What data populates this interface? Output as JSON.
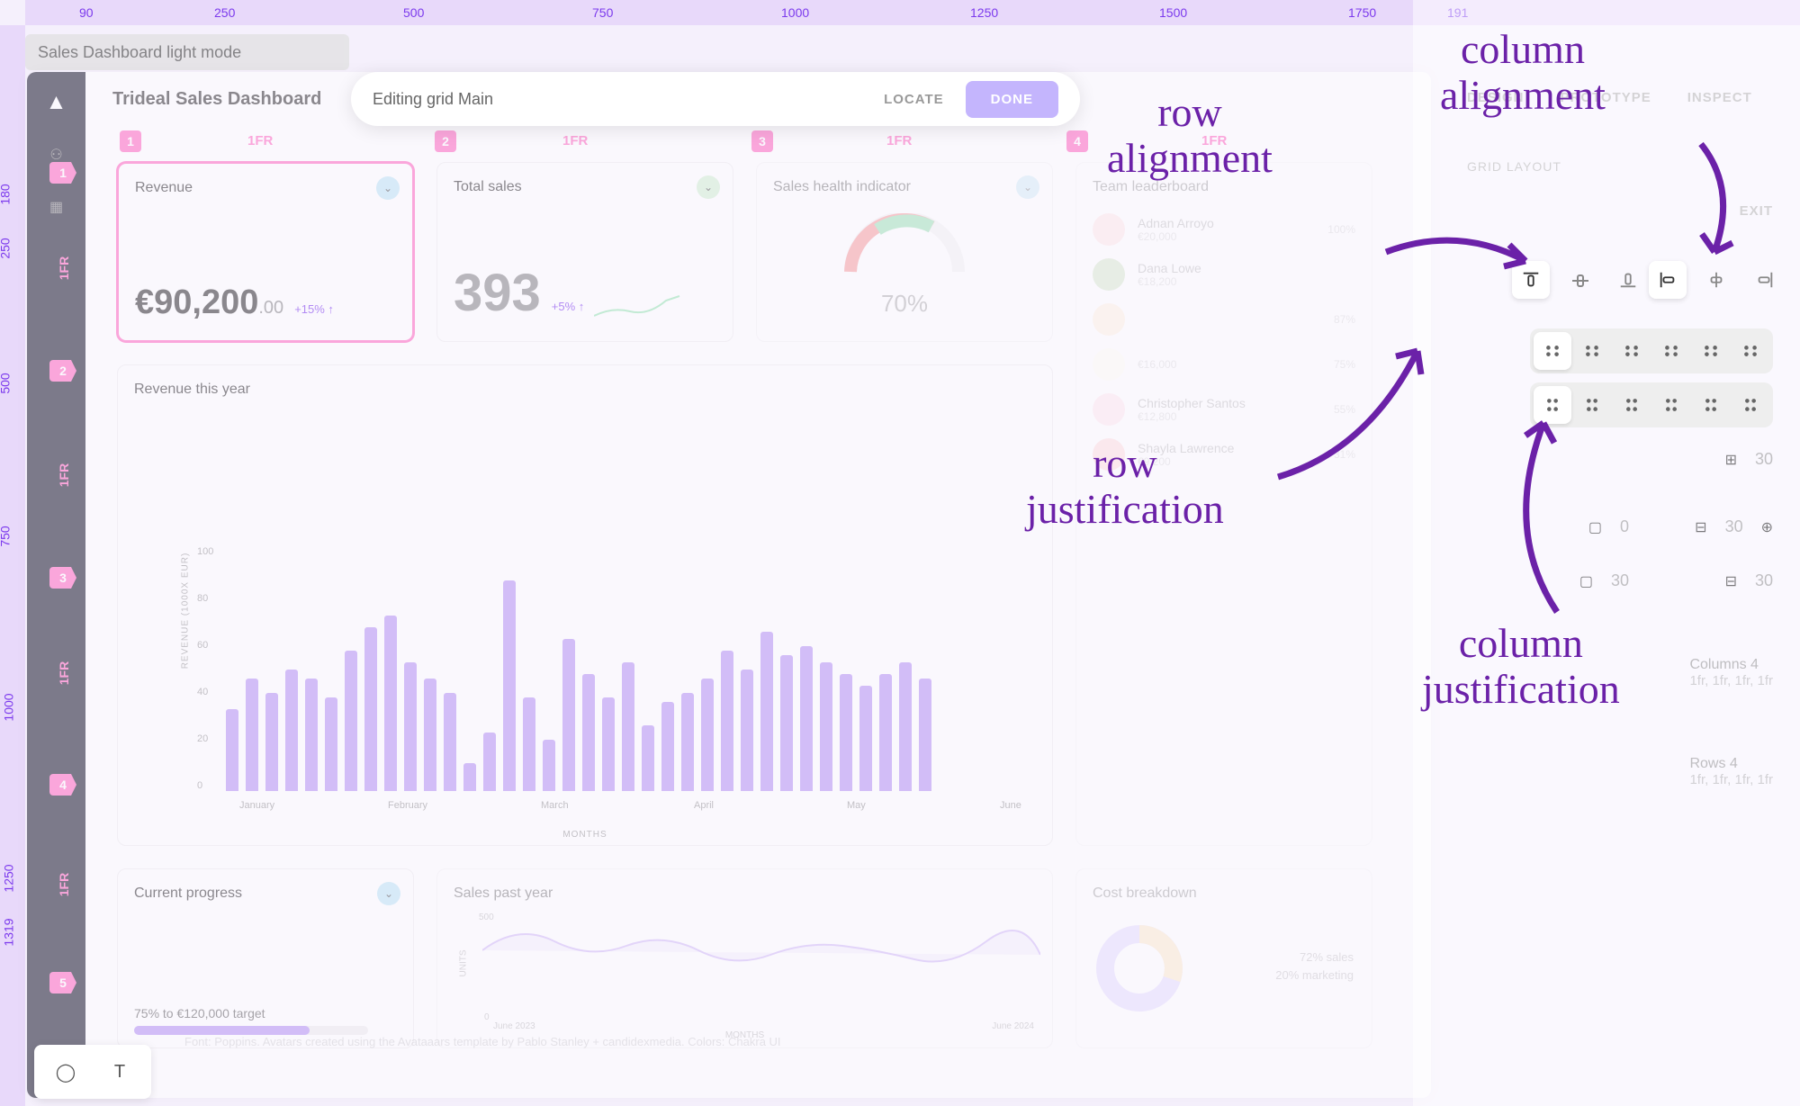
{
  "ruler_h": [
    "90",
    "250",
    "500",
    "750",
    "1000",
    "1250",
    "1500",
    "1750",
    "191"
  ],
  "ruler_h_pos": [
    60,
    210,
    420,
    630,
    840,
    1050,
    1260,
    1470,
    1580
  ],
  "ruler_v": [
    "180",
    "250",
    "500",
    "750",
    "1000",
    "1250",
    "1319"
  ],
  "ruler_v_pos": [
    180,
    240,
    390,
    560,
    750,
    940,
    1000
  ],
  "titlebar": "Sales Dashboard light mode",
  "app_title": "Trideal Sales Dashboard",
  "edit": {
    "label": "Editing grid Main",
    "locate": "LOCATE",
    "done": "DONE"
  },
  "grid_cols": [
    {
      "n": "1",
      "fr": "1FR",
      "bx": 8,
      "fx": 150
    },
    {
      "n": "2",
      "fr": "1FR",
      "bx": 358,
      "fx": 500
    },
    {
      "n": "3",
      "fr": "1FR",
      "bx": 710,
      "fx": 860
    },
    {
      "n": "4",
      "fr": "1FR",
      "bx": 1060,
      "fx": 1210
    }
  ],
  "grid_rows": [
    {
      "n": "1",
      "fr": "1FR",
      "by": 100,
      "fy": 210
    },
    {
      "n": "2",
      "fr": "1FR",
      "by": 320,
      "fy": 440
    },
    {
      "n": "3",
      "fr": "1FR",
      "by": 550,
      "fy": 660
    },
    {
      "n": "4",
      "fr": "1FR",
      "by": 780,
      "fy": 895
    },
    {
      "n": "5",
      "fr": "",
      "by": 1000,
      "fy": 0
    }
  ],
  "cards": {
    "revenue": {
      "title": "Revenue",
      "value": "€90,200",
      "dec": ".00",
      "delta": "+15% ↑"
    },
    "sales": {
      "title": "Total sales",
      "value": "393",
      "delta": "+5% ↑"
    },
    "health": {
      "title": "Sales health indicator",
      "pct": "70%"
    },
    "leader": {
      "title": "Team leaderboard",
      "rows": [
        {
          "name": "Adnan Arroyo",
          "val": "€20,000",
          "pct": "100%",
          "c": "#fbb"
        },
        {
          "name": "Dana Lowe",
          "val": "€18,200",
          "pct": "",
          "c": "#8b6"
        },
        {
          "name": "",
          "val": "",
          "pct": "87%",
          "c": "#fda"
        },
        {
          "name": "",
          "val": "€16,000",
          "pct": "75%",
          "c": "#ffd"
        },
        {
          "name": "Christopher Santos",
          "val": "€12,800",
          "pct": "55%",
          "c": "#fbc"
        },
        {
          "name": "Shayla Lawrence",
          "val": "€9,200",
          "pct": "31%",
          "c": "#f99"
        }
      ]
    },
    "revyear": {
      "title": "Revenue this year",
      "ylabel": "REVENUE (1000X EUR)",
      "xlabel": "MONTHS",
      "yticks": [
        "0",
        "20",
        "40",
        "60",
        "80",
        "100"
      ],
      "ytick_pos": [
        0,
        52,
        104,
        156,
        208,
        260
      ],
      "xticks": [
        "January",
        "February",
        "March",
        "April",
        "May",
        "June"
      ],
      "xtick_pos": [
        135,
        300,
        470,
        640,
        810,
        980
      ],
      "bars": [
        35,
        48,
        42,
        52,
        48,
        40,
        60,
        70,
        75,
        55,
        48,
        42,
        12,
        25,
        90,
        40,
        22,
        65,
        50,
        40,
        55,
        28,
        38,
        42,
        48,
        60,
        52,
        68,
        58,
        62,
        55,
        50,
        45,
        50,
        55,
        48
      ],
      "bar_color": "#b794f4"
    },
    "progress": {
      "title": "Current progress",
      "text": "75% to €120,000 target",
      "pct": 75
    },
    "spast": {
      "title": "Sales past year",
      "ylabel": "UNITS",
      "xlabel": "MONTHS",
      "yticks": [
        "0",
        "500"
      ],
      "xstart": "June 2023",
      "xend": "June 2024"
    },
    "cost": {
      "title": "Cost breakdown",
      "l1": "72% sales",
      "l2": "20% marketing"
    }
  },
  "right": {
    "tabs": [
      "DESIGN",
      "PROTOTYPE",
      "INSPECT"
    ],
    "section": "GRID LAYOUT",
    "exit": "EXIT",
    "spacing": {
      "g1": "30",
      "p": "0",
      "g2": "30",
      "g3": "30",
      "g4": "30"
    },
    "cols_def": {
      "t": "Columns 4",
      "s": "1fr, 1fr, 1fr, 1fr"
    },
    "rows_def": {
      "t": "Rows 4",
      "s": "1fr, 1fr, 1fr, 1fr"
    }
  },
  "anno": {
    "ra": "row\nalignment",
    "ca": "column\nalignment",
    "rj": "row\njustification",
    "cj": "column\njustification"
  },
  "credit": "Font: Poppins. Avatars created using the Avataaars template by Pablo Stanley + candidexmedia. Colors: Chakra UI"
}
